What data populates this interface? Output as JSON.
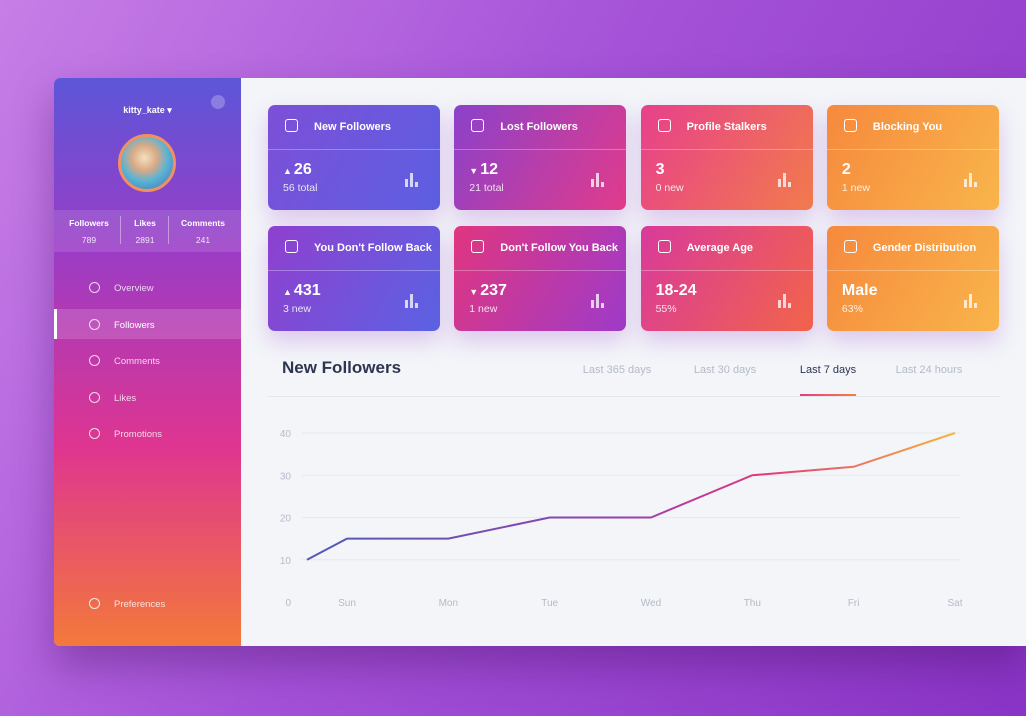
{
  "sidebar": {
    "username": "kitty_kate",
    "stats": [
      {
        "label": "Followers",
        "value": "789"
      },
      {
        "label": "Likes",
        "value": "2891"
      },
      {
        "label": "Comments",
        "value": "241"
      }
    ],
    "nav": [
      "Overview",
      "Followers",
      "Comments",
      "Likes",
      "Promotions"
    ],
    "footer": "Preferences"
  },
  "cards": [
    {
      "title": "New Followers",
      "value": "26",
      "sub": "56 total",
      "trend": "up"
    },
    {
      "title": "Lost Followers",
      "value": "12",
      "sub": "21 total",
      "trend": "down"
    },
    {
      "title": "Profile Stalkers",
      "value": "3",
      "sub": "0 new"
    },
    {
      "title": "Blocking You",
      "value": "2",
      "sub": "1 new"
    },
    {
      "title": "You Don't Follow Back",
      "value": "431",
      "sub": "3 new",
      "trend": "up"
    },
    {
      "title": "Don't Follow You Back",
      "value": "237",
      "sub": "1 new",
      "trend": "down"
    },
    {
      "title": "Average Age",
      "value": "18-24",
      "sub": "55%"
    },
    {
      "title": "Gender Distribution",
      "value": "Male",
      "sub": "63%"
    }
  ],
  "tabs": [
    "Last 365 days",
    "Last 30 days",
    "Last 7 days",
    "Last 24 hours"
  ],
  "chart_data": {
    "type": "line",
    "title": "New Followers",
    "categories": [
      null,
      "Sun",
      "Mon",
      "Tue",
      "Wed",
      "Thu",
      "Fri",
      "Sat"
    ],
    "values": [
      10,
      15,
      15,
      20,
      20,
      30,
      32,
      40
    ],
    "ylim": [
      0,
      40
    ],
    "yticks": [
      0,
      10,
      20,
      30,
      40
    ],
    "grid": true
  }
}
